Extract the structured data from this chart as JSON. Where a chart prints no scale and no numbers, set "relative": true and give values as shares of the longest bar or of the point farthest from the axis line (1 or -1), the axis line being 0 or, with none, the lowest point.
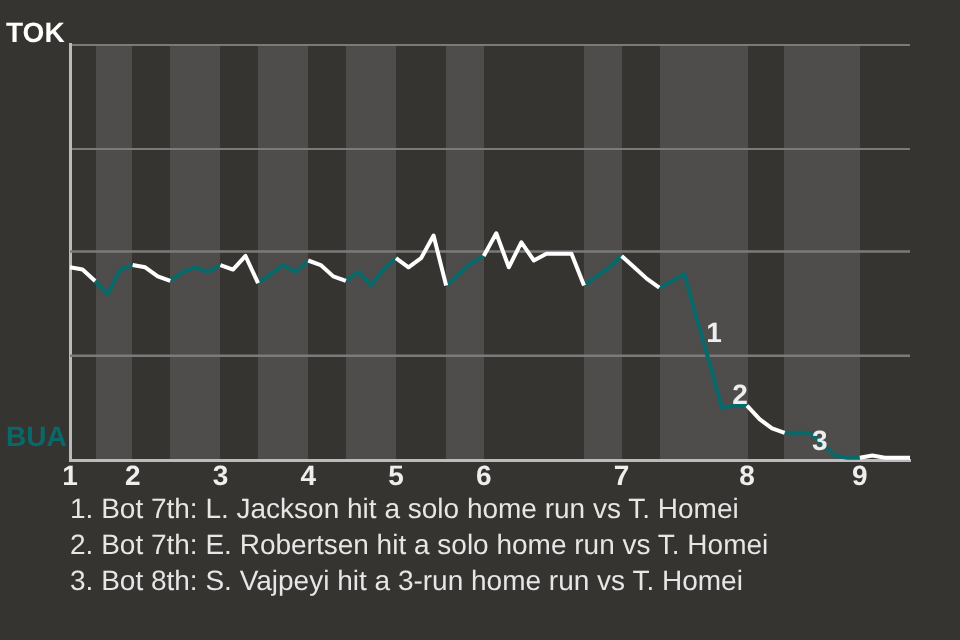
{
  "chart_data": {
    "type": "line",
    "relative": true,
    "legend": false,
    "ref_lines": [
      {
        "axis": "y",
        "value": 0.46,
        "color": "#7a7a7a"
      },
      {
        "axis": "y",
        "value": 0.92,
        "color": "#7a7a7a"
      }
    ],
    "categories": [
      "1",
      null,
      null,
      null,
      null,
      "2",
      null,
      null,
      null,
      null,
      null,
      null,
      "3",
      null,
      null,
      null,
      null,
      null,
      null,
      "4",
      null,
      null,
      null,
      null,
      null,
      null,
      "5",
      null,
      null,
      null,
      null,
      null,
      null,
      "6",
      null,
      null,
      null,
      null,
      null,
      null,
      null,
      null,
      null,
      null,
      "7",
      null,
      null,
      null,
      null,
      null,
      null,
      null,
      null,
      null,
      "8",
      null,
      null,
      null,
      null,
      null,
      null,
      null,
      null,
      "9",
      null,
      null,
      null,
      null
    ],
    "series": [
      {
        "color": "#ffffff",
        "values": [
          0.85,
          0.84,
          0.79,
          null,
          null,
          0.86,
          0.85,
          0.81,
          0.79,
          null,
          null,
          null,
          0.86,
          0.84,
          0.9,
          0.78,
          null,
          null,
          null,
          0.88,
          0.86,
          0.81,
          0.79,
          null,
          null,
          null,
          0.89,
          0.85,
          0.89,
          0.99,
          0.77,
          null,
          null,
          0.9,
          1,
          0.85,
          0.96,
          0.88,
          0.91,
          0.91,
          0.91,
          0.77,
          null,
          null,
          0.9,
          0.85,
          0.8,
          0.76,
          null,
          null,
          null,
          null,
          null,
          null,
          0.24,
          0.18,
          0.14,
          0.12,
          null,
          null,
          null,
          null,
          null,
          0.01,
          0.02,
          0.01,
          0.01,
          0.01
        ]
      },
      {
        "color": "#08696a",
        "values": [
          null,
          null,
          0.79,
          0.73,
          0.84,
          0.86,
          null,
          null,
          0.79,
          0.83,
          0.85,
          0.83,
          0.86,
          null,
          null,
          0.78,
          0.82,
          0.86,
          0.83,
          0.88,
          null,
          null,
          0.79,
          0.83,
          0.77,
          0.84,
          0.89,
          null,
          null,
          null,
          0.77,
          0.82,
          0.87,
          0.9,
          null,
          null,
          null,
          null,
          null,
          null,
          null,
          0.77,
          0.81,
          0.85,
          0.9,
          null,
          null,
          0.76,
          0.79,
          0.82,
          0.62,
          0.43,
          0.23,
          0.24,
          0.24,
          null,
          null,
          0.12,
          0.12,
          0.12,
          0.07,
          0.02,
          0.01,
          0.01,
          null,
          null,
          null,
          null
        ]
      }
    ],
    "annotations": [
      "TOK",
      "BUA",
      "1",
      "2",
      "3",
      "1. Bot 7th: L. Jackson hit a solo home run vs T. Homei",
      "2. Bot 7th: E. Robertsen hit a solo home run vs T. Homei",
      "3. Bot 8th: S. Vajpeyi hit a 3-run home run vs T. Homei"
    ]
  }
}
